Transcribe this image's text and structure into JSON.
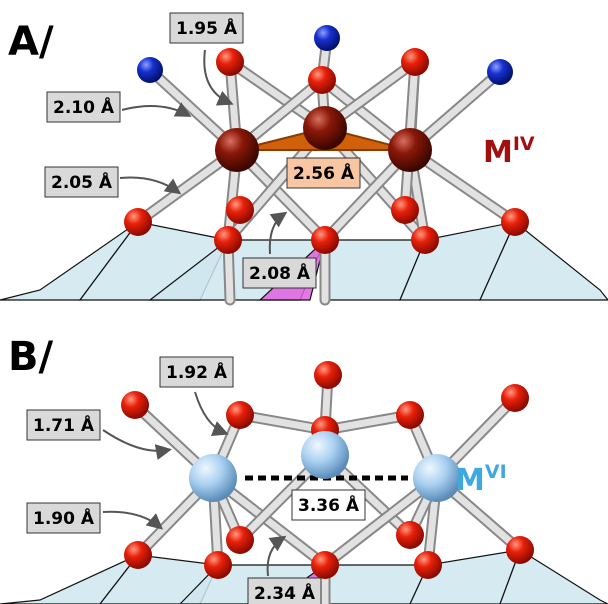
{
  "panels": [
    {
      "label": "A/",
      "metal": {
        "symbol": "M",
        "oxidation": "IV"
      },
      "distances": [
        "1.95 Å",
        "2.10 Å",
        "2.05 Å",
        "2.56 Å",
        "2.08 Å"
      ]
    },
    {
      "label": "B/",
      "metal": {
        "symbol": "M",
        "oxidation": "VI"
      },
      "distances": [
        "1.92 Å",
        "1.71 Å",
        "1.90 Å",
        "3.36 Å",
        "2.34 Å"
      ]
    }
  ]
}
